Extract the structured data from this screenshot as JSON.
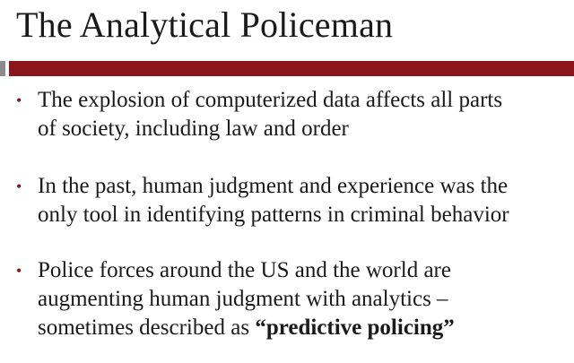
{
  "slide": {
    "title": "The Analytical Policeman",
    "accent_color": "#8b1519",
    "bullet_symbol": "•",
    "bullets": [
      {
        "line1": "The explosion of computerized data affects all parts",
        "line2": "of society, including law and order"
      },
      {
        "line1": "In the past, human judgment and experience was the",
        "line2": "only tool in identifying patterns in criminal behavior"
      },
      {
        "line1": "Police forces around the US and the world are",
        "line2": "augmenting human judgment with analytics –",
        "line3_prefix": "sometimes described as ",
        "line3_emphasis": "“predictive policing”"
      }
    ]
  }
}
